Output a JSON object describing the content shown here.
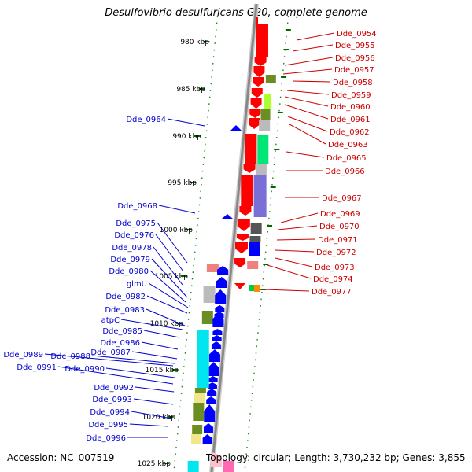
{
  "title": "Desulfovibrio desulfuricans G20, complete genome",
  "footer": {
    "accession": "Accession: NC_007519",
    "stats": "Topology: circular; Length: 3,730,232 bp; Genes: 3,855"
  },
  "colors": {
    "forward_label": "#cc0000",
    "reverse_label": "#0000cc",
    "tick": "#006600",
    "backbone": "#888888"
  },
  "chart_data": {
    "type": "genome-map",
    "ticks": [
      "980 kbp",
      "985 kbp",
      "990 kbp",
      "995 kbp",
      "1000 kbp",
      "1005 kbp",
      "1010 kbp",
      "1015 kbp",
      "1020 kbp",
      "1025 kbp"
    ],
    "forward_genes": [
      "Dde_0954",
      "Dde_0955",
      "Dde_0956",
      "Dde_0957",
      "Dde_0958",
      "Dde_0959",
      "Dde_0960",
      "Dde_0961",
      "Dde_0962",
      "Dde_0963",
      "Dde_0965",
      "Dde_0966",
      "Dde_0967",
      "Dde_0969",
      "Dde_0970",
      "Dde_0971",
      "Dde_0972",
      "Dde_0973",
      "Dde_0974",
      "Dde_0977"
    ],
    "reverse_genes": [
      "Dde_0964",
      "Dde_0968",
      "Dde_0975",
      "Dde_0976",
      "Dde_0978",
      "Dde_0979",
      "Dde_0980",
      "glmU",
      "Dde_0982",
      "Dde_0983",
      "atpC",
      "Dde_0985",
      "Dde_0986",
      "Dde_0987",
      "Dde_0989",
      "Dde_0988",
      "Dde_0991",
      "Dde_0990",
      "Dde_0992",
      "Dde_0993",
      "Dde_0994",
      "Dde_0995",
      "Dde_0996"
    ]
  }
}
